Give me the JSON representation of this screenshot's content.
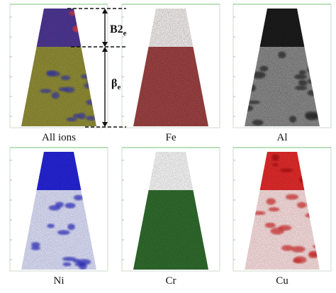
{
  "panels": [
    {
      "label": "All ions"
    },
    {
      "label": "Fe"
    },
    {
      "label": "Al"
    },
    {
      "label": "Ni"
    },
    {
      "label": "Cr"
    },
    {
      "label": "Cu"
    }
  ],
  "annotations": {
    "b2": {
      "main": "B2",
      "sub": "e"
    },
    "beta": {
      "main": "β",
      "sub": "e"
    }
  }
}
